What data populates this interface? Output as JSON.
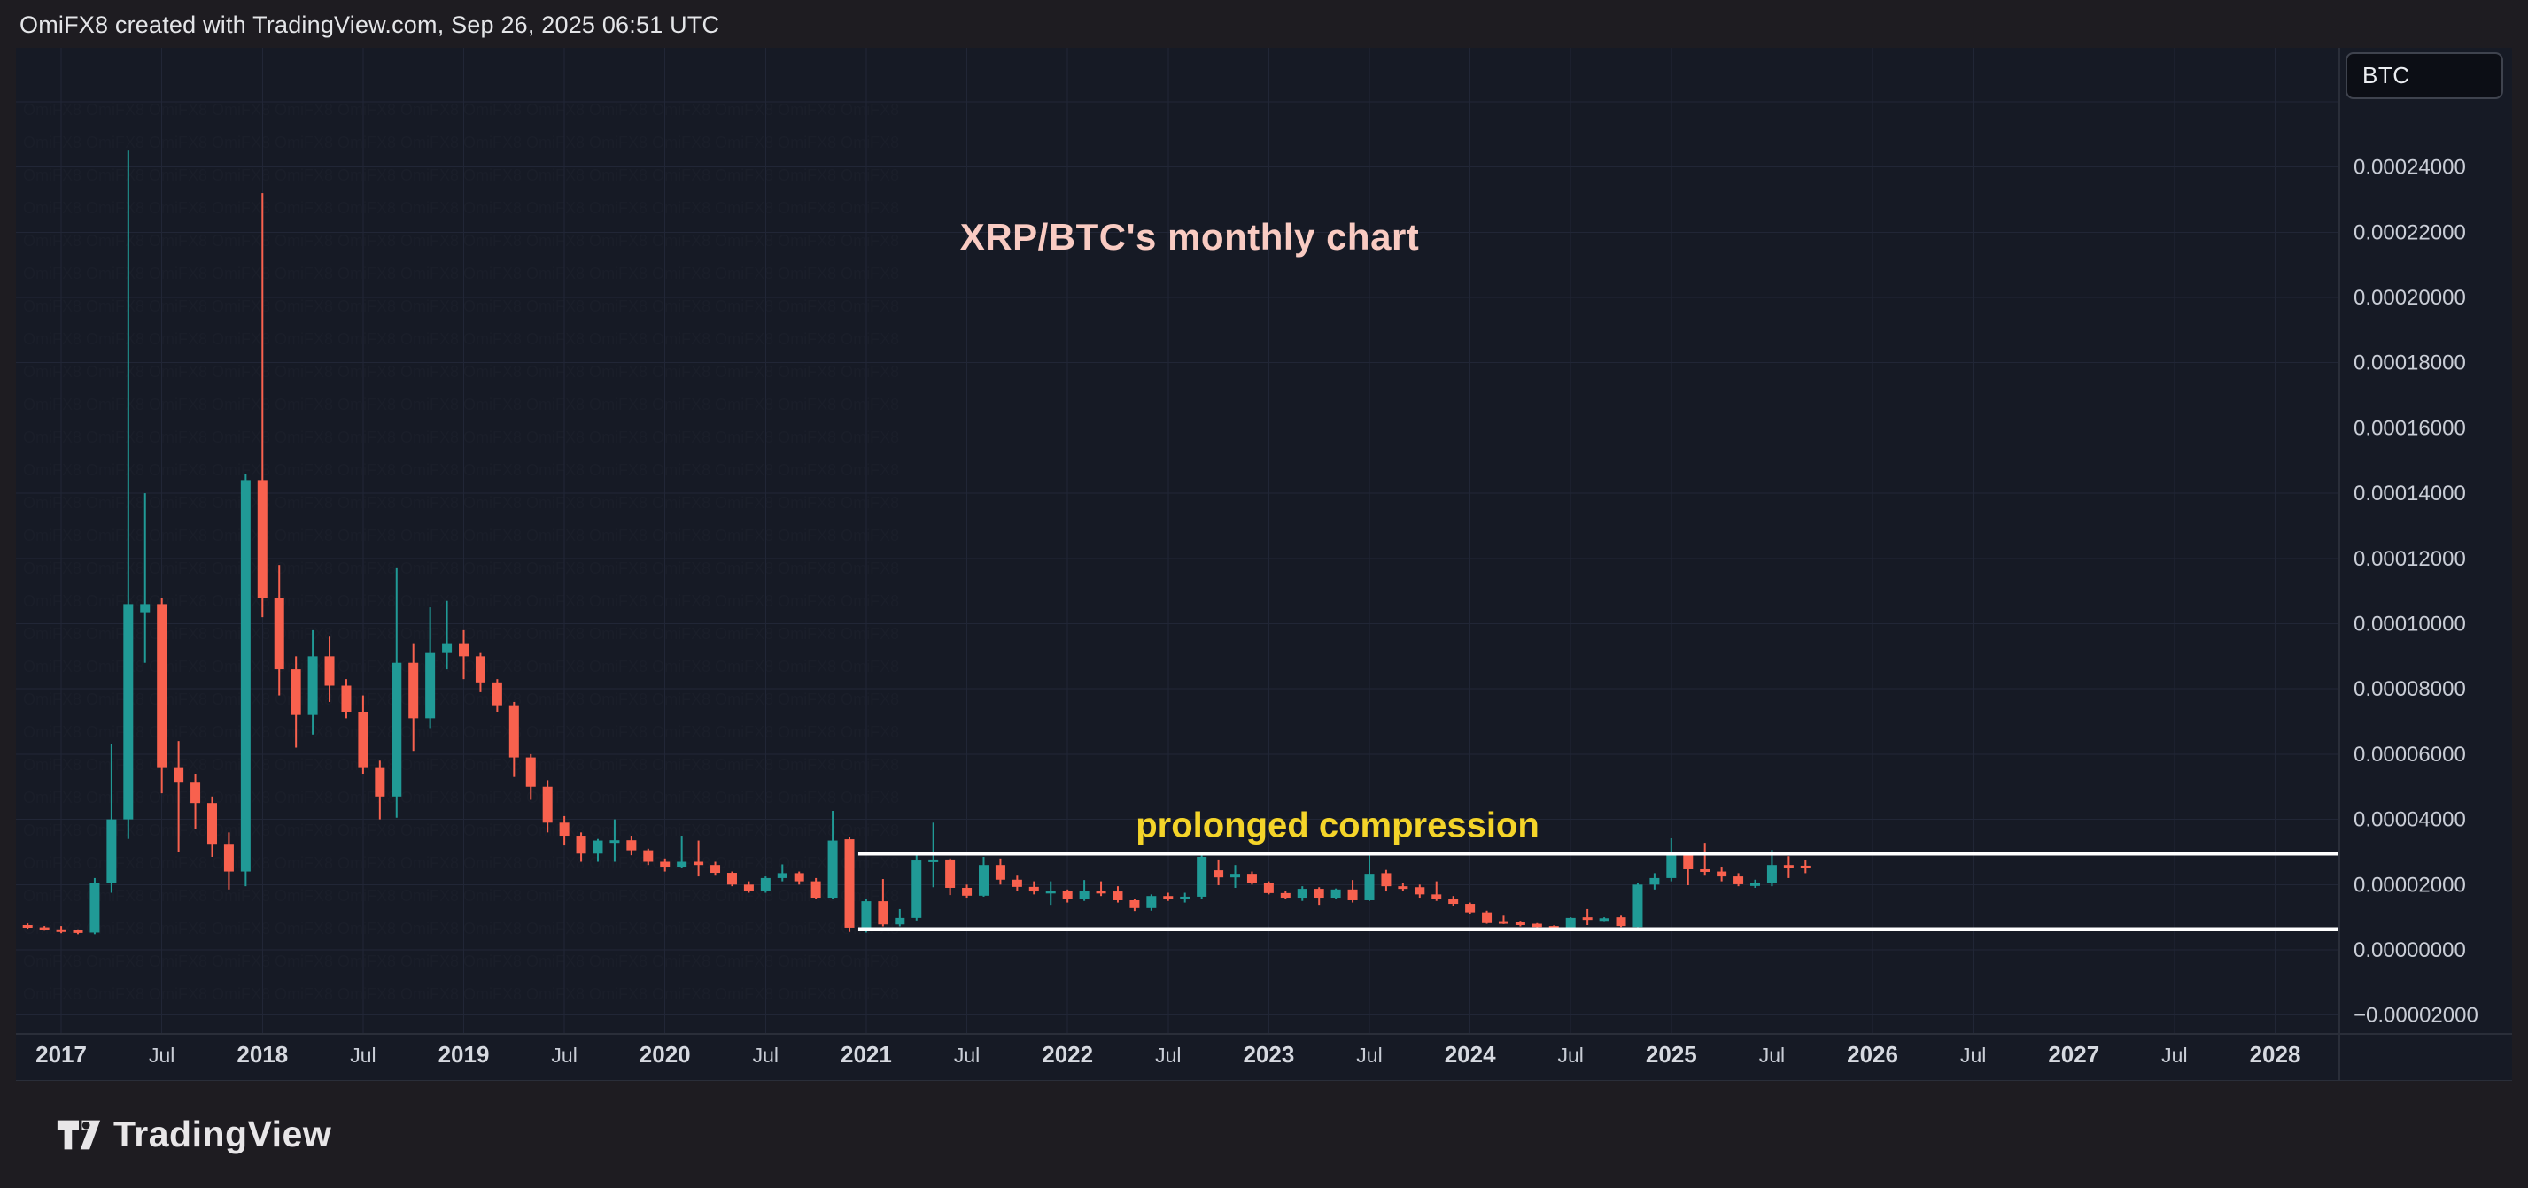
{
  "header": {
    "credit": "OmiFX8 created with TradingView.com, Sep 26, 2025 06:51 UTC"
  },
  "symbol_box": {
    "label": "BTC"
  },
  "annotations": {
    "title": "XRP/BTC's monthly chart",
    "compression": "prolonged compression"
  },
  "footer": {
    "brand": "TradingView"
  },
  "colors": {
    "up": "#209a96",
    "down": "#f8614e",
    "plot_background": "#161a25",
    "outer_background": "#1e1c21",
    "grid": "#212636",
    "border": "#2a2e39",
    "axis_text": "#c9cdd6",
    "year_text": "#d6d9e0",
    "title_text": "#f9cbc2",
    "compression_text": "#f4d429",
    "trend_line": "#ffffff"
  },
  "chart_data": {
    "type": "candlestick",
    "symbol": "XRP/BTC",
    "timeframe": "monthly",
    "title": "XRP/BTC's monthly chart",
    "grid": true,
    "y_axis": {
      "min": -2e-05,
      "max": 0.00026,
      "tick_step": 2e-05,
      "labels": [
        "0.00024000",
        "0.00022000",
        "0.00020000",
        "0.00018000",
        "0.00016000",
        "0.00014000",
        "0.00012000",
        "0.00010000",
        "0.00008000",
        "0.00006000",
        "0.00004000",
        "0.00002000",
        "0.00000000",
        "−0.00002000"
      ]
    },
    "x_axis": {
      "tick_labels": [
        "2017",
        "Jul",
        "2018",
        "Jul",
        "2019",
        "Jul",
        "2020",
        "Jul",
        "2021",
        "Jul",
        "2022",
        "Jul",
        "2023",
        "Jul",
        "2024",
        "Jul",
        "2025",
        "Jul",
        "2026",
        "Jul",
        "2027",
        "Jul",
        "2028"
      ]
    },
    "trend_lines": [
      {
        "name": "compression-top",
        "price": 2.95e-05,
        "from": "2021-01",
        "color": "#ffffff"
      },
      {
        "name": "compression-bottom",
        "price": 6.3e-06,
        "from": "2021-01",
        "color": "#ffffff"
      }
    ],
    "candles": [
      [
        "2016-11",
        7.6e-06,
        8.1e-06,
        6.5e-06,
        6.9e-06
      ],
      [
        "2016-12",
        6.9e-06,
        7.3e-06,
        5.9e-06,
        6.3e-06
      ],
      [
        "2017-01",
        6.3e-06,
        7.3e-06,
        5.1e-06,
        6e-06
      ],
      [
        "2017-02",
        6e-06,
        6.3e-06,
        4.8e-06,
        5.3e-06
      ],
      [
        "2017-03",
        5.3e-06,
        2.2e-05,
        4.8e-06,
        2.05e-05
      ],
      [
        "2017-04",
        2.05e-05,
        6.3e-05,
        1.75e-05,
        4e-05
      ],
      [
        "2017-05",
        4e-05,
        0.000245,
        3.4e-05,
        0.000106
      ],
      [
        "2017-06",
        0.0001035,
        0.00014,
        8.8e-05,
        0.000106
      ],
      [
        "2017-07",
        0.000106,
        0.000108,
        4.8e-05,
        5.6e-05
      ],
      [
        "2017-08",
        5.6e-05,
        6.4e-05,
        3e-05,
        5.15e-05
      ],
      [
        "2017-09",
        5.15e-05,
        5.4e-05,
        3.7e-05,
        4.5e-05
      ],
      [
        "2017-10",
        4.5e-05,
        4.7e-05,
        2.85e-05,
        3.25e-05
      ],
      [
        "2017-11",
        3.25e-05,
        3.6e-05,
        1.85e-05,
        2.4e-05
      ],
      [
        "2017-12",
        2.4e-05,
        0.000146,
        1.95e-05,
        0.000144
      ],
      [
        "2018-01",
        0.000144,
        0.000232,
        0.000102,
        0.000108
      ],
      [
        "2018-02",
        0.000108,
        0.000118,
        7.8e-05,
        8.6e-05
      ],
      [
        "2018-03",
        8.6e-05,
        9e-05,
        6.2e-05,
        7.2e-05
      ],
      [
        "2018-04",
        7.2e-05,
        9.8e-05,
        6.6e-05,
        9e-05
      ],
      [
        "2018-05",
        9e-05,
        9.6e-05,
        7.6e-05,
        8.1e-05
      ],
      [
        "2018-06",
        8.1e-05,
        8.3e-05,
        7.1e-05,
        7.3e-05
      ],
      [
        "2018-07",
        7.3e-05,
        7.8e-05,
        5.4e-05,
        5.6e-05
      ],
      [
        "2018-08",
        5.6e-05,
        5.8e-05,
        4e-05,
        4.7e-05
      ],
      [
        "2018-09",
        4.7e-05,
        0.000117,
        4.05e-05,
        8.8e-05
      ],
      [
        "2018-10",
        8.8e-05,
        9.4e-05,
        6.1e-05,
        7.1e-05
      ],
      [
        "2018-11",
        7.1e-05,
        0.000105,
        6.8e-05,
        9.1e-05
      ],
      [
        "2018-12",
        9.1e-05,
        0.000107,
        8.6e-05,
        9.4e-05
      ],
      [
        "2019-01",
        9.4e-05,
        9.8e-05,
        8.3e-05,
        9e-05
      ],
      [
        "2019-02",
        9e-05,
        9.1e-05,
        7.9e-05,
        8.2e-05
      ],
      [
        "2019-03",
        8.2e-05,
        8.3e-05,
        7.3e-05,
        7.5e-05
      ],
      [
        "2019-04",
        7.5e-05,
        7.6e-05,
        5.3e-05,
        5.9e-05
      ],
      [
        "2019-05",
        5.9e-05,
        6e-05,
        4.6e-05,
        5e-05
      ],
      [
        "2019-06",
        5e-05,
        5.2e-05,
        3.6e-05,
        3.9e-05
      ],
      [
        "2019-07",
        3.9e-05,
        4.1e-05,
        3.2e-05,
        3.5e-05
      ],
      [
        "2019-08",
        3.5e-05,
        3.6e-05,
        2.7e-05,
        2.95e-05
      ],
      [
        "2019-09",
        2.95e-05,
        3.4e-05,
        2.7e-05,
        3.35e-05
      ],
      [
        "2019-10",
        3.34e-05,
        4e-05,
        2.7e-05,
        3.36e-05
      ],
      [
        "2019-11",
        3.36e-05,
        3.5e-05,
        2.9e-05,
        3.05e-05
      ],
      [
        "2019-12",
        3.05e-05,
        3.1e-05,
        2.6e-05,
        2.7e-05
      ],
      [
        "2020-01",
        2.7e-05,
        2.8e-05,
        2.4e-05,
        2.55e-05
      ],
      [
        "2020-02",
        2.55e-05,
        3.5e-05,
        2.5e-05,
        2.7e-05
      ],
      [
        "2020-03",
        2.7e-05,
        3.35e-05,
        2.25e-05,
        2.6e-05
      ],
      [
        "2020-04",
        2.6e-05,
        2.7e-05,
        2.3e-05,
        2.36e-05
      ],
      [
        "2020-05",
        2.36e-05,
        2.4e-05,
        1.95e-05,
        2e-05
      ],
      [
        "2020-06",
        2e-05,
        2.1e-05,
        1.75e-05,
        1.8e-05
      ],
      [
        "2020-07",
        1.8e-05,
        2.25e-05,
        1.75e-05,
        2.2e-05
      ],
      [
        "2020-08",
        2.2e-05,
        2.62e-05,
        2.1e-05,
        2.35e-05
      ],
      [
        "2020-09",
        2.35e-05,
        2.4e-05,
        2e-05,
        2.1e-05
      ],
      [
        "2020-10",
        2.1e-05,
        2.2e-05,
        1.55e-05,
        1.6e-05
      ],
      [
        "2020-11",
        1.6e-05,
        4.26e-05,
        1.55e-05,
        3.35e-05
      ],
      [
        "2020-12",
        3.39e-05,
        3.45e-05,
        5.5e-06,
        6.8e-06
      ],
      [
        "2021-01",
        6.8e-06,
        1.55e-05,
        5.3e-06,
        1.49e-05
      ],
      [
        "2021-02",
        1.49e-05,
        2.17e-05,
        7.2e-06,
        7.8e-06
      ],
      [
        "2021-03",
        7.8e-06,
        1.25e-05,
        7.2e-06,
        9.8e-06
      ],
      [
        "2021-04",
        9.8e-06,
        3e-05,
        9e-06,
        2.74e-05
      ],
      [
        "2021-05",
        2.74e-05,
        3.9e-05,
        1.92e-05,
        2.77e-05
      ],
      [
        "2021-06",
        2.77e-05,
        2.8e-05,
        1.68e-05,
        1.9e-05
      ],
      [
        "2021-07",
        1.9e-05,
        2e-05,
        1.6e-05,
        1.66e-05
      ],
      [
        "2021-08",
        1.66e-05,
        2.85e-05,
        1.63e-05,
        2.6e-05
      ],
      [
        "2021-09",
        2.6e-05,
        2.8e-05,
        2e-05,
        2.15e-05
      ],
      [
        "2021-10",
        2.15e-05,
        2.3e-05,
        1.8e-05,
        1.93e-05
      ],
      [
        "2021-11",
        1.93e-05,
        2.1e-05,
        1.7e-05,
        1.79e-05
      ],
      [
        "2021-12",
        1.79e-05,
        2.1e-05,
        1.38e-05,
        1.81e-05
      ],
      [
        "2022-01",
        1.81e-05,
        1.85e-05,
        1.45e-05,
        1.55e-05
      ],
      [
        "2022-02",
        1.55e-05,
        2.14e-05,
        1.5e-05,
        1.81e-05
      ],
      [
        "2022-03",
        1.81e-05,
        2.1e-05,
        1.65e-05,
        1.79e-05
      ],
      [
        "2022-04",
        1.79e-05,
        1.95e-05,
        1.45e-05,
        1.52e-05
      ],
      [
        "2022-05",
        1.52e-05,
        1.55e-05,
        1.19e-05,
        1.28e-05
      ],
      [
        "2022-06",
        1.28e-05,
        1.7e-05,
        1.2e-05,
        1.65e-05
      ],
      [
        "2022-07",
        1.65e-05,
        1.75e-05,
        1.5e-05,
        1.62e-05
      ],
      [
        "2022-08",
        1.6e-05,
        1.75e-05,
        1.45e-05,
        1.63e-05
      ],
      [
        "2022-09",
        1.63e-05,
        2.9e-05,
        1.55e-05,
        2.85e-05
      ],
      [
        "2022-10",
        2.44e-05,
        2.77e-05,
        1.98e-05,
        2.22e-05
      ],
      [
        "2022-11",
        2.22e-05,
        2.6e-05,
        1.9e-05,
        2.33e-05
      ],
      [
        "2022-12",
        2.33e-05,
        2.4e-05,
        2e-05,
        2.06e-05
      ],
      [
        "2023-01",
        2.06e-05,
        2.1e-05,
        1.7e-05,
        1.74e-05
      ],
      [
        "2023-02",
        1.74e-05,
        1.8e-05,
        1.55e-05,
        1.6e-05
      ],
      [
        "2023-03",
        1.6e-05,
        1.95e-05,
        1.5e-05,
        1.87e-05
      ],
      [
        "2023-04",
        1.87e-05,
        1.92e-05,
        1.38e-05,
        1.6e-05
      ],
      [
        "2023-05",
        1.6e-05,
        1.88e-05,
        1.55e-05,
        1.85e-05
      ],
      [
        "2023-06",
        1.85e-05,
        2.14e-05,
        1.45e-05,
        1.52e-05
      ],
      [
        "2023-07",
        1.52e-05,
        3e-05,
        1.5e-05,
        2.33e-05
      ],
      [
        "2023-08",
        2.35e-05,
        2.45e-05,
        1.79e-05,
        1.95e-05
      ],
      [
        "2023-09",
        1.95e-05,
        2.05e-05,
        1.8e-05,
        1.92e-05
      ],
      [
        "2023-10",
        1.92e-05,
        2e-05,
        1.6e-05,
        1.7e-05
      ],
      [
        "2023-11",
        1.7e-05,
        2.1e-05,
        1.5e-05,
        1.56e-05
      ],
      [
        "2023-12",
        1.56e-05,
        1.65e-05,
        1.35e-05,
        1.41e-05
      ],
      [
        "2024-01",
        1.41e-05,
        1.45e-05,
        1.1e-05,
        1.15e-05
      ],
      [
        "2024-02",
        1.15e-05,
        1.2e-05,
        8e-06,
        8.2e-06
      ],
      [
        "2024-03",
        8.8e-06,
        1.05e-05,
        7.9e-06,
        8.4e-06
      ],
      [
        "2024-04",
        8.6e-06,
        8.9e-06,
        7.2e-06,
        7.6e-06
      ],
      [
        "2024-05",
        8e-06,
        8.2e-06,
        6.8e-06,
        7e-06
      ],
      [
        "2024-06",
        7.3e-06,
        7.5e-06,
        6e-06,
        6.6e-06
      ],
      [
        "2024-07",
        6.8e-06,
        1e-05,
        6.2e-06,
        9.8e-06
      ],
      [
        "2024-08",
        1e-05,
        1.25e-05,
        7.6e-06,
        9.8e-06
      ],
      [
        "2024-09",
        9.3e-06,
        1e-05,
        8.8e-06,
        9.7e-06
      ],
      [
        "2024-10",
        1e-05,
        1.05e-05,
        7e-06,
        7.3e-06
      ],
      [
        "2024-11",
        7e-06,
        2.05e-05,
        6.6e-06,
        2e-05
      ],
      [
        "2024-12",
        2e-05,
        2.35e-05,
        1.85e-05,
        2.2e-05
      ],
      [
        "2025-01",
        2.2e-05,
        3.42e-05,
        2.1e-05,
        2.93e-05
      ],
      [
        "2025-02",
        2.93e-05,
        3e-05,
        1.98e-05,
        2.47e-05
      ],
      [
        "2025-03",
        2.47e-05,
        3.28e-05,
        2.3e-05,
        2.4e-05
      ],
      [
        "2025-04",
        2.4e-05,
        2.55e-05,
        2.1e-05,
        2.25e-05
      ],
      [
        "2025-05",
        2.25e-05,
        2.35e-05,
        1.95e-05,
        2.01e-05
      ],
      [
        "2025-06",
        2.01e-05,
        2.15e-05,
        1.9e-05,
        2.04e-05
      ],
      [
        "2025-07",
        2.04e-05,
        3.06e-05,
        1.95e-05,
        2.6e-05
      ],
      [
        "2025-08",
        2.6e-05,
        2.87e-05,
        2.2e-05,
        2.58e-05
      ],
      [
        "2025-09",
        2.58e-05,
        2.75e-05,
        2.35e-05,
        2.53e-05
      ]
    ]
  }
}
